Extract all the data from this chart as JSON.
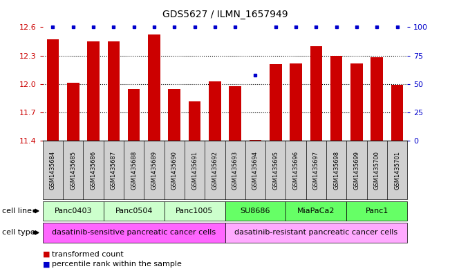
{
  "title": "GDS5627 / ILMN_1657949",
  "samples": [
    "GSM1435684",
    "GSM1435685",
    "GSM1435686",
    "GSM1435687",
    "GSM1435688",
    "GSM1435689",
    "GSM1435690",
    "GSM1435691",
    "GSM1435692",
    "GSM1435693",
    "GSM1435694",
    "GSM1435695",
    "GSM1435696",
    "GSM1435697",
    "GSM1435698",
    "GSM1435699",
    "GSM1435700",
    "GSM1435701"
  ],
  "values": [
    12.47,
    12.01,
    12.45,
    12.45,
    11.95,
    12.52,
    11.95,
    11.82,
    12.03,
    11.98,
    11.41,
    12.21,
    12.22,
    12.4,
    12.3,
    12.22,
    12.28,
    11.99
  ],
  "percentiles": [
    100,
    100,
    100,
    100,
    100,
    100,
    100,
    100,
    100,
    100,
    58,
    100,
    100,
    100,
    100,
    100,
    100,
    100
  ],
  "ylim_left": [
    11.4,
    12.6
  ],
  "yticks_left": [
    11.4,
    11.7,
    12.0,
    12.3,
    12.6
  ],
  "yticks_right": [
    0,
    25,
    50,
    75,
    100
  ],
  "bar_color": "#cc0000",
  "dot_color": "#0000cc",
  "cell_lines": [
    {
      "label": "Panc0403",
      "start": 0,
      "end": 2,
      "color": "#ccffcc"
    },
    {
      "label": "Panc0504",
      "start": 3,
      "end": 5,
      "color": "#ccffcc"
    },
    {
      "label": "Panc1005",
      "start": 6,
      "end": 8,
      "color": "#ccffcc"
    },
    {
      "label": "SU8686",
      "start": 9,
      "end": 11,
      "color": "#66ff66"
    },
    {
      "label": "MiaPaCa2",
      "start": 12,
      "end": 14,
      "color": "#66ff66"
    },
    {
      "label": "Panc1",
      "start": 15,
      "end": 17,
      "color": "#66ff66"
    }
  ],
  "cell_types": [
    {
      "label": "dasatinib-sensitive pancreatic cancer cells",
      "start": 0,
      "end": 8,
      "color": "#ff66ff"
    },
    {
      "label": "dasatinib-resistant pancreatic cancer cells",
      "start": 9,
      "end": 17,
      "color": "#ffaaff"
    }
  ],
  "legend_bar_label": "transformed count",
  "legend_dot_label": "percentile rank within the sample",
  "label_color_left": "#cc0000",
  "label_color_right": "#0000cc",
  "xtick_bg": "#d0d0d0",
  "spine_color": "#000000"
}
